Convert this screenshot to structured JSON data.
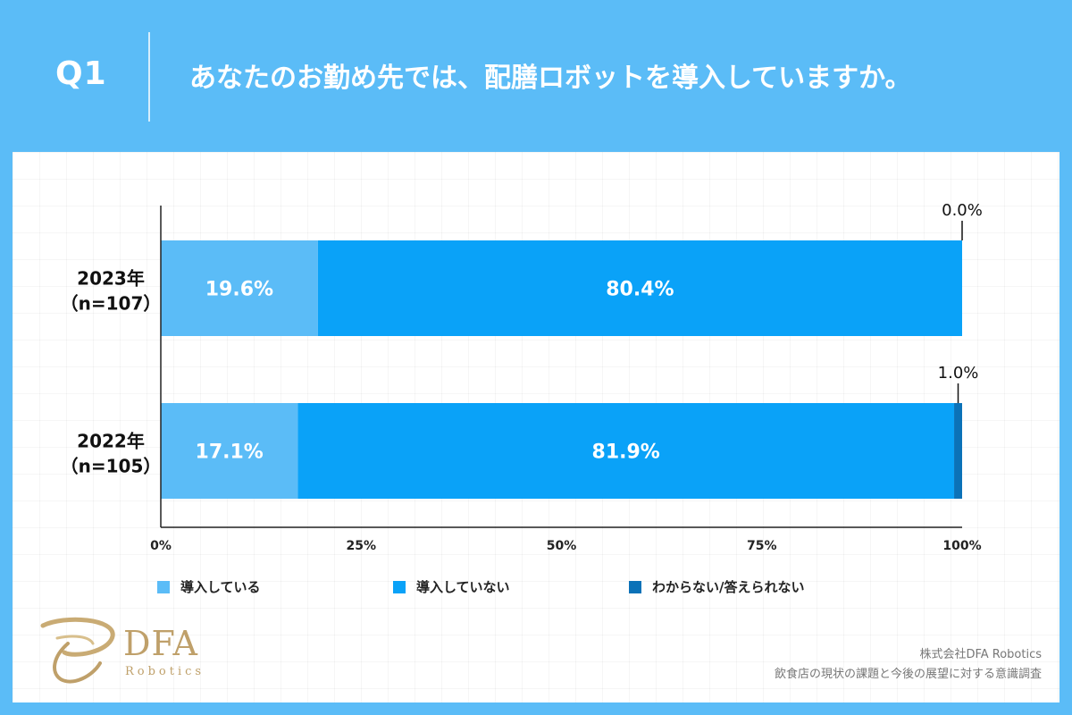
{
  "header": {
    "q_label": "Q1",
    "question": "あなたのお勤め先では、配膳ロボットを導入していますか。"
  },
  "chart_data": {
    "type": "bar",
    "orientation": "horizontal",
    "stacked": true,
    "title": "",
    "xlabel": "",
    "ylabel": "",
    "xlim": [
      0,
      100
    ],
    "x_ticks": [
      "0%",
      "25%",
      "50%",
      "75%",
      "100%"
    ],
    "categories": [
      {
        "line1": "2023年",
        "line2": "（n=107）"
      },
      {
        "line1": "2022年",
        "line2": "（n=105）"
      }
    ],
    "series": [
      {
        "name": "導入している",
        "color": "#5bbcf7",
        "values": [
          19.6,
          17.1
        ],
        "labels": [
          "19.6%",
          "17.1%"
        ]
      },
      {
        "name": "導入していない",
        "color": "#0aa2f8",
        "values": [
          80.4,
          81.9
        ],
        "labels": [
          "80.4%",
          "81.9%"
        ]
      },
      {
        "name": "わからない/答えられない",
        "color": "#0b72b8",
        "values": [
          0.0,
          1.0
        ],
        "labels": [
          "0.0%",
          "1.0%"
        ]
      }
    ],
    "grid": false,
    "legend_position": "bottom"
  },
  "legend": [
    {
      "label": "導入している",
      "color": "#5bbcf7"
    },
    {
      "label": "導入していない",
      "color": "#0aa2f8"
    },
    {
      "label": "わからない/答えられない",
      "color": "#0b72b8"
    }
  ],
  "logo": {
    "text": "DFA",
    "sub": "Robotics",
    "color": "#bfa06a"
  },
  "footer": {
    "company": "株式会社DFA Robotics",
    "survey": "飲食店の現状の課題と今後の展望に対する意識調査"
  }
}
